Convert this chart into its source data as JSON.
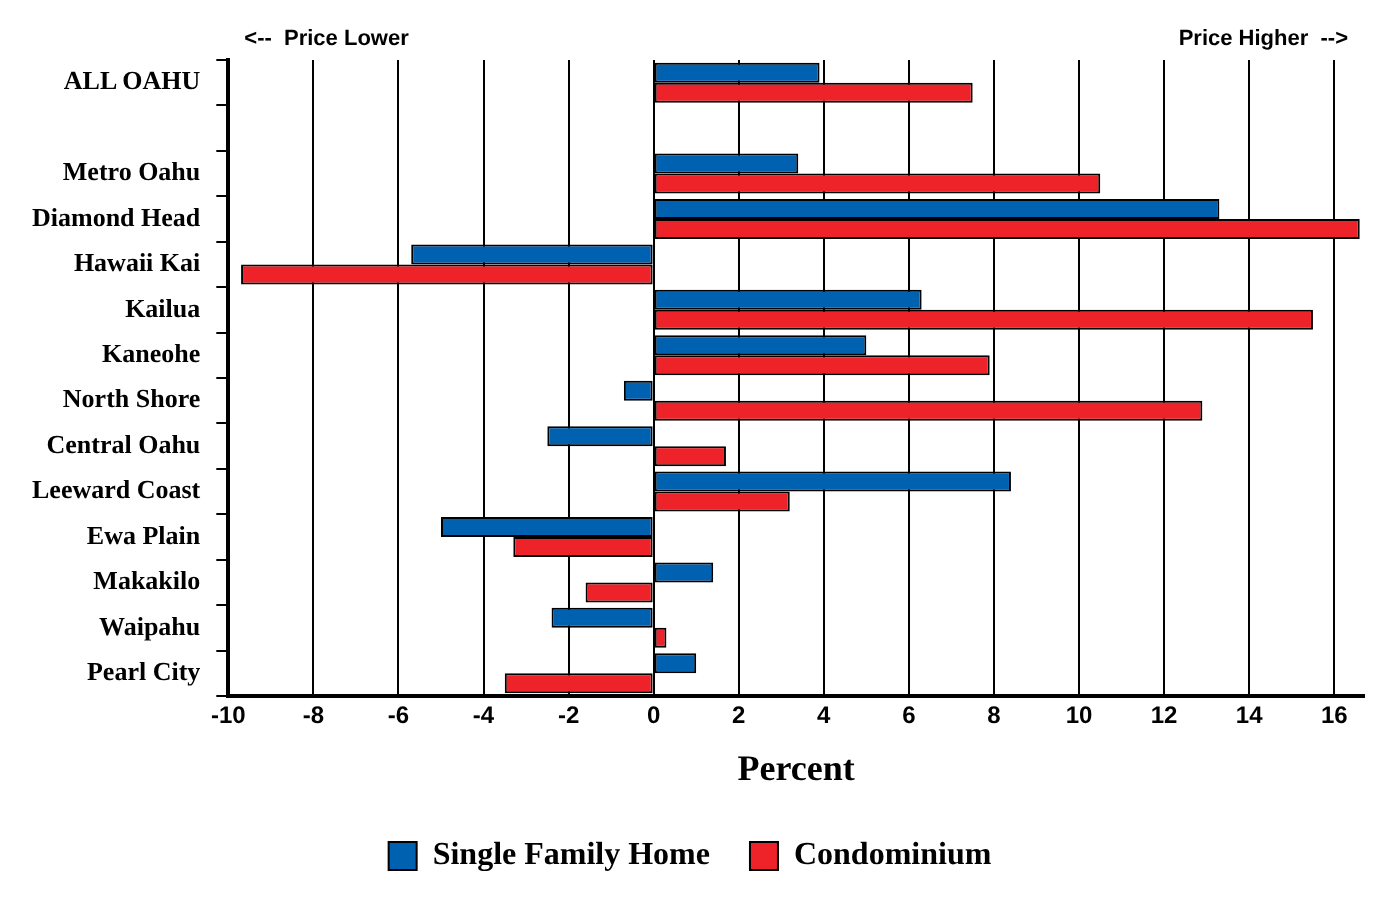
{
  "chart_data": {
    "type": "bar",
    "orientation": "horizontal",
    "xlabel": "Percent",
    "categories": [
      "ALL OAHU",
      null,
      "Metro Oahu",
      "Diamond Head",
      "Hawaii Kai",
      "Kailua",
      "Kaneohe",
      "North Shore",
      "Central Oahu",
      "Leeward Coast",
      "Ewa Plain",
      "Makakilo",
      "Waipahu",
      "Pearl City"
    ],
    "series": [
      {
        "name": "Single Family Home",
        "color": "#0061b0",
        "values": [
          3.9,
          null,
          3.4,
          13.3,
          -5.7,
          6.3,
          5.0,
          -0.7,
          -2.5,
          8.4,
          -5.0,
          1.4,
          -2.4,
          1.0
        ]
      },
      {
        "name": "Condominium",
        "color": "#ee2229",
        "values": [
          7.5,
          null,
          10.5,
          16.6,
          -9.7,
          15.5,
          7.9,
          12.9,
          1.7,
          3.2,
          -3.3,
          -1.6,
          0.3,
          -3.5
        ]
      }
    ],
    "xlim": [
      -10,
      16.7
    ],
    "xticks": [
      -10,
      -8,
      -6,
      -4,
      -2,
      0,
      2,
      4,
      6,
      8,
      10,
      12,
      14,
      16
    ],
    "grid": "x",
    "legend": "bottom",
    "annotations": [
      "<--  Price Lower",
      "Price Higher  -->"
    ]
  }
}
